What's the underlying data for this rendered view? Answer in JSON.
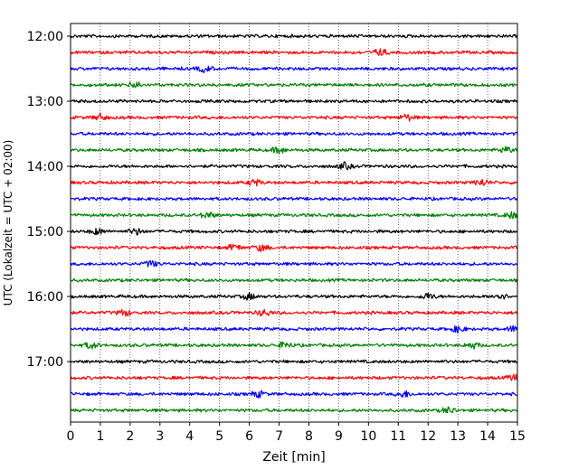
{
  "chart_data": {
    "type": "line",
    "title": "",
    "xlabel": "Zeit  [min]",
    "ylabel": "UTC (Lokalzeit = UTC + 02:00)",
    "xlim": [
      0,
      15
    ],
    "x_ticks": [
      0,
      1,
      2,
      3,
      4,
      5,
      6,
      7,
      8,
      9,
      10,
      11,
      12,
      13,
      14,
      15
    ],
    "x_tick_labels": [
      "0",
      "1",
      "2",
      "3",
      "4",
      "5",
      "6",
      "7",
      "8",
      "9",
      "10",
      "11",
      "12",
      "13",
      "14",
      "15"
    ],
    "y_tick_labels": [
      "12:00",
      "13:00",
      "14:00",
      "15:00",
      "16:00",
      "17:00"
    ],
    "grid": "vertical dotted",
    "color_cycle": [
      "#000000",
      "#ff0000",
      "#0000ff",
      "#008000"
    ],
    "traces": [
      {
        "start": "12:00",
        "color": "#000000"
      },
      {
        "start": "12:15",
        "color": "#ff0000",
        "events": [
          10.4
        ]
      },
      {
        "start": "12:30",
        "color": "#0000ff",
        "events": [
          4.5
        ]
      },
      {
        "start": "12:45",
        "color": "#008000",
        "events": [
          2.2
        ]
      },
      {
        "start": "13:00",
        "color": "#000000"
      },
      {
        "start": "13:15",
        "color": "#ff0000",
        "events": [
          1.0,
          11.3
        ]
      },
      {
        "start": "13:30",
        "color": "#0000ff"
      },
      {
        "start": "13:45",
        "color": "#008000",
        "events": [
          7.0,
          14.6
        ]
      },
      {
        "start": "14:00",
        "color": "#000000",
        "events": [
          9.2
        ]
      },
      {
        "start": "14:15",
        "color": "#ff0000",
        "events": [
          6.2,
          13.8
        ]
      },
      {
        "start": "14:30",
        "color": "#0000ff"
      },
      {
        "start": "14:45",
        "color": "#008000",
        "events": [
          4.6,
          14.8
        ]
      },
      {
        "start": "15:00",
        "color": "#000000",
        "events": [
          0.9,
          2.2
        ]
      },
      {
        "start": "15:15",
        "color": "#ff0000",
        "events": [
          5.5,
          6.4
        ]
      },
      {
        "start": "15:30",
        "color": "#0000ff",
        "events": [
          2.7
        ]
      },
      {
        "start": "15:45",
        "color": "#008000"
      },
      {
        "start": "16:00",
        "color": "#000000",
        "events": [
          6.0,
          12.0,
          14.4
        ]
      },
      {
        "start": "16:15",
        "color": "#ff0000",
        "events": [
          1.8,
          6.5
        ]
      },
      {
        "start": "16:30",
        "color": "#0000ff",
        "events": [
          13.0,
          14.9
        ]
      },
      {
        "start": "16:45",
        "color": "#008000",
        "events": [
          0.7,
          7.2,
          13.5
        ]
      },
      {
        "start": "17:00",
        "color": "#000000"
      },
      {
        "start": "17:15",
        "color": "#ff0000",
        "events": [
          14.9
        ]
      },
      {
        "start": "17:30",
        "color": "#0000ff",
        "events": [
          6.3,
          11.2
        ]
      },
      {
        "start": "17:45",
        "color": "#008000",
        "events": [
          12.7
        ]
      }
    ]
  }
}
